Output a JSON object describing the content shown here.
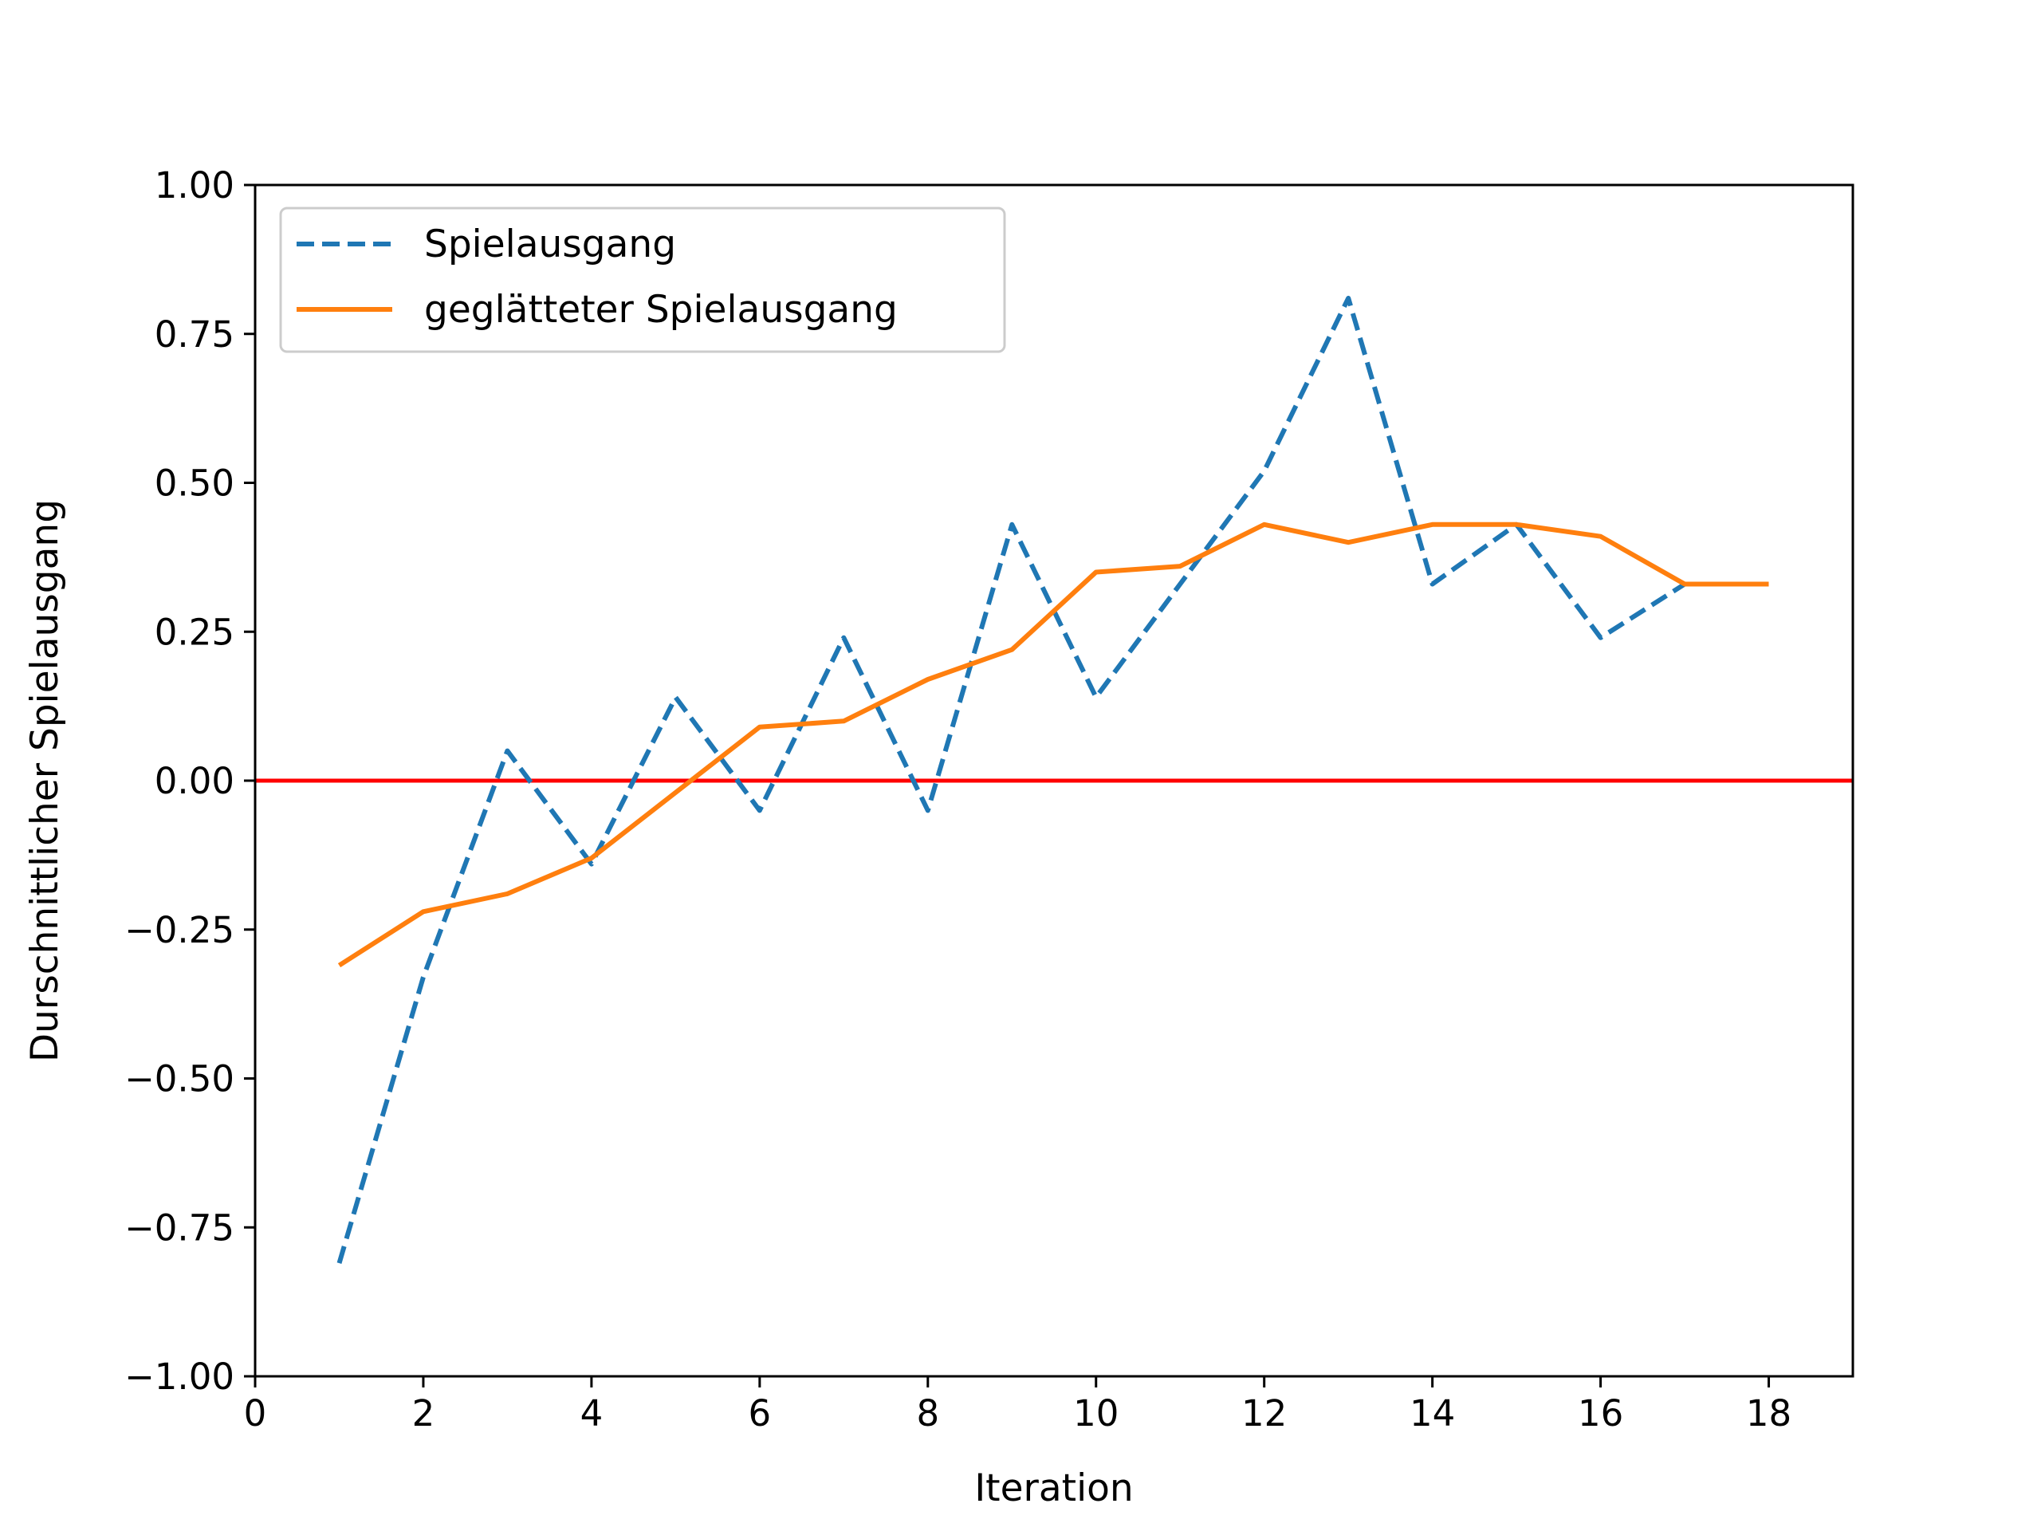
{
  "chart_data": {
    "type": "line",
    "title": "",
    "xlabel": "Iteration",
    "ylabel": "Durschnittlicher Spielausgang",
    "xlim": [
      0,
      19
    ],
    "ylim": [
      -1.0,
      1.0
    ],
    "xticks": [
      "0",
      "2",
      "4",
      "6",
      "8",
      "10",
      "12",
      "14",
      "16",
      "18"
    ],
    "xtick_values": [
      0,
      2,
      4,
      6,
      8,
      10,
      12,
      14,
      16,
      18
    ],
    "yticks": [
      "1.00",
      "0.75",
      "0.50",
      "0.25",
      "0.00",
      "−0.25",
      "−0.50",
      "−0.75",
      "−1.00"
    ],
    "ytick_values": [
      1.0,
      0.75,
      0.5,
      0.25,
      0.0,
      -0.25,
      -0.5,
      -0.75,
      -1.0
    ],
    "grid": false,
    "legend_position": "upper-left",
    "x": [
      1,
      2,
      3,
      4,
      5,
      6,
      7,
      8,
      9,
      10,
      11,
      12,
      13,
      14,
      15,
      16,
      17,
      18
    ],
    "series": [
      {
        "name": "Spielausgang",
        "style": "dashed",
        "color": "#1f77b4",
        "values": [
          -0.81,
          -0.33,
          0.05,
          -0.14,
          0.14,
          -0.05,
          0.24,
          -0.05,
          0.43,
          0.14,
          0.33,
          0.52,
          0.81,
          0.33,
          0.43,
          0.24,
          0.33,
          0.33
        ]
      },
      {
        "name": "geglätteter Spielausgang",
        "style": "solid",
        "color": "#ff7f0e",
        "values": [
          -0.31,
          -0.22,
          -0.19,
          -0.13,
          -0.02,
          0.09,
          0.1,
          0.17,
          0.22,
          0.35,
          0.36,
          0.43,
          0.4,
          0.43,
          0.43,
          0.41,
          0.33,
          0.33
        ]
      }
    ],
    "reference_line": {
      "y": 0.0,
      "color": "#ff0000"
    }
  }
}
